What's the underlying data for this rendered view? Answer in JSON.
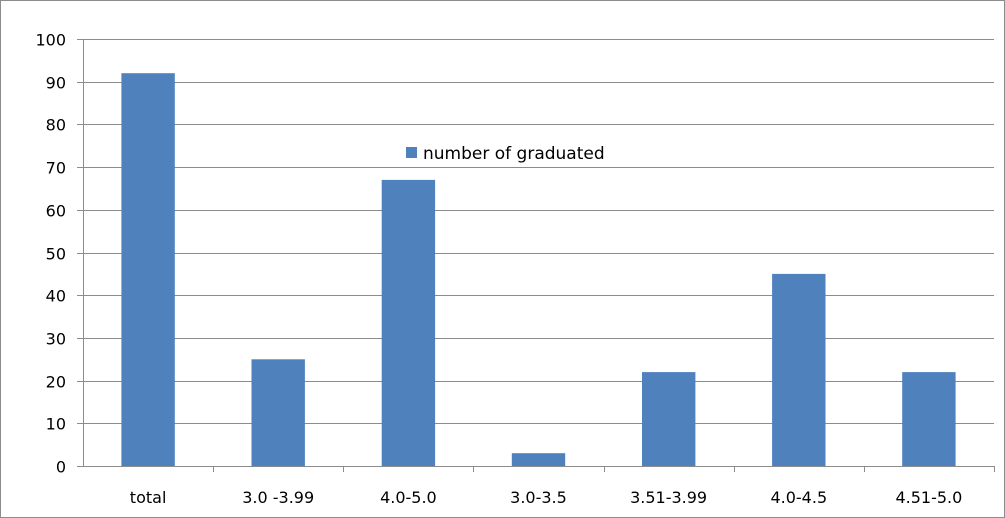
{
  "chart_data": {
    "type": "bar",
    "categories": [
      "total",
      "3.0 -3.99",
      "4.0-5.0",
      "3.0-3.5",
      "3.51-3.99",
      "4.0-4.5",
      "4.51-5.0"
    ],
    "series": [
      {
        "name": "number of graduated",
        "values": [
          92,
          25,
          67,
          3,
          22,
          45,
          22
        ],
        "color": "#4f81bd"
      }
    ],
    "ylim": [
      0,
      100
    ],
    "yticks": [
      0,
      10,
      20,
      30,
      40,
      50,
      60,
      70,
      80,
      90,
      100
    ],
    "grid": true,
    "gridColor": "#8c8c8c",
    "legend": {
      "placement": "inside-top-center"
    }
  }
}
